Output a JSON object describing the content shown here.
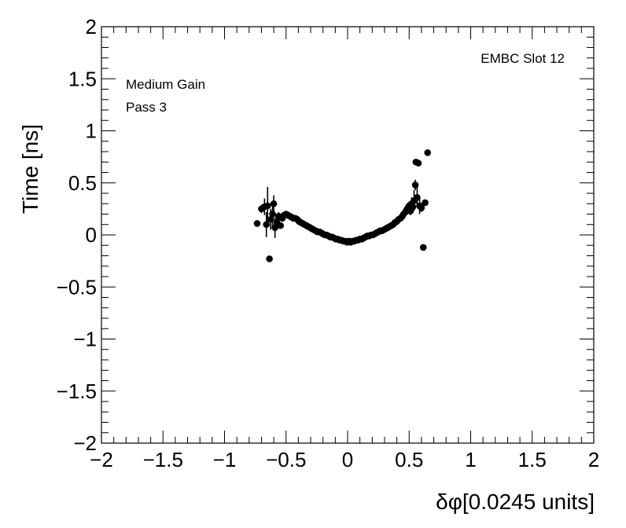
{
  "chart_data": {
    "type": "scatter",
    "title": "",
    "xlabel": "δφ[0.0245 units]",
    "ylabel": "Time [ns]",
    "xlim": [
      -2,
      2
    ],
    "ylim": [
      -2,
      2
    ],
    "x_ticks": [
      -2,
      -1.5,
      -1,
      -0.5,
      0,
      0.5,
      1,
      1.5,
      2
    ],
    "y_ticks": [
      -2,
      -1.5,
      -1,
      -0.5,
      0,
      0.5,
      1,
      1.5,
      2
    ],
    "x_tick_labels": [
      "−2",
      "−1.5",
      "−1",
      "−0.5",
      "0",
      "0.5",
      "1",
      "1.5",
      "2"
    ],
    "y_tick_labels": [
      "−2",
      "−1.5",
      "−1",
      "−0.5",
      "0",
      "0.5",
      "1",
      "1.5",
      "2"
    ],
    "grid": false,
    "annotations": {
      "slot": "EMBC Slot 12",
      "gain": "Medium Gain",
      "pass": "Pass 3"
    },
    "points": [
      {
        "x": -0.735,
        "y": 0.11,
        "err": 0.02
      },
      {
        "x": -0.7,
        "y": 0.25,
        "err": 0.04
      },
      {
        "x": -0.675,
        "y": 0.27,
        "err": 0.08
      },
      {
        "x": -0.66,
        "y": 0.1,
        "err": 0.12
      },
      {
        "x": -0.65,
        "y": 0.28,
        "err": 0.18
      },
      {
        "x": -0.635,
        "y": -0.23,
        "err": 0.02
      },
      {
        "x": -0.625,
        "y": 0.15,
        "err": 0.1
      },
      {
        "x": -0.61,
        "y": 0.2,
        "err": 0.12
      },
      {
        "x": -0.6,
        "y": 0.3,
        "err": 0.08
      },
      {
        "x": -0.59,
        "y": 0.07,
        "err": 0.1
      },
      {
        "x": -0.575,
        "y": 0.12,
        "err": 0.06
      },
      {
        "x": -0.56,
        "y": 0.18,
        "err": 0.04
      },
      {
        "x": -0.545,
        "y": 0.09,
        "err": 0.03
      },
      {
        "x": -0.53,
        "y": 0.16,
        "err": 0.02
      },
      {
        "x": -0.515,
        "y": 0.19,
        "err": 0.02
      },
      {
        "x": -0.5,
        "y": 0.2,
        "err": 0.02
      },
      {
        "x": -0.485,
        "y": 0.19,
        "err": 0.02
      },
      {
        "x": -0.47,
        "y": 0.18,
        "err": 0.02
      },
      {
        "x": -0.455,
        "y": 0.17,
        "err": 0.02
      },
      {
        "x": -0.44,
        "y": 0.16,
        "err": 0.02
      },
      {
        "x": -0.425,
        "y": 0.16,
        "err": 0.02
      },
      {
        "x": -0.41,
        "y": 0.15,
        "err": 0.02
      },
      {
        "x": -0.395,
        "y": 0.13,
        "err": 0.02
      },
      {
        "x": -0.38,
        "y": 0.12,
        "err": 0.02
      },
      {
        "x": -0.365,
        "y": 0.11,
        "err": 0.02
      },
      {
        "x": -0.35,
        "y": 0.1,
        "err": 0.02
      },
      {
        "x": -0.335,
        "y": 0.09,
        "err": 0.02
      },
      {
        "x": -0.32,
        "y": 0.08,
        "err": 0.02
      },
      {
        "x": -0.305,
        "y": 0.07,
        "err": 0.02
      },
      {
        "x": -0.29,
        "y": 0.06,
        "err": 0.02
      },
      {
        "x": -0.275,
        "y": 0.05,
        "err": 0.02
      },
      {
        "x": -0.26,
        "y": 0.04,
        "err": 0.02
      },
      {
        "x": -0.245,
        "y": 0.03,
        "err": 0.02
      },
      {
        "x": -0.23,
        "y": 0.03,
        "err": 0.02
      },
      {
        "x": -0.215,
        "y": 0.02,
        "err": 0.02
      },
      {
        "x": -0.2,
        "y": 0.01,
        "err": 0.02
      },
      {
        "x": -0.185,
        "y": 0.0,
        "err": 0.02
      },
      {
        "x": -0.17,
        "y": 0.0,
        "err": 0.02
      },
      {
        "x": -0.155,
        "y": -0.01,
        "err": 0.02
      },
      {
        "x": -0.14,
        "y": -0.02,
        "err": 0.02
      },
      {
        "x": -0.125,
        "y": -0.02,
        "err": 0.02
      },
      {
        "x": -0.11,
        "y": -0.03,
        "err": 0.02
      },
      {
        "x": -0.095,
        "y": -0.04,
        "err": 0.02
      },
      {
        "x": -0.08,
        "y": -0.04,
        "err": 0.02
      },
      {
        "x": -0.065,
        "y": -0.05,
        "err": 0.02
      },
      {
        "x": -0.05,
        "y": -0.05,
        "err": 0.02
      },
      {
        "x": -0.035,
        "y": -0.06,
        "err": 0.02
      },
      {
        "x": -0.02,
        "y": -0.06,
        "err": 0.02
      },
      {
        "x": -0.005,
        "y": -0.07,
        "err": 0.02
      },
      {
        "x": 0.01,
        "y": -0.06,
        "err": 0.02
      },
      {
        "x": 0.025,
        "y": -0.07,
        "err": 0.02
      },
      {
        "x": 0.04,
        "y": -0.06,
        "err": 0.02
      },
      {
        "x": 0.055,
        "y": -0.06,
        "err": 0.02
      },
      {
        "x": 0.07,
        "y": -0.05,
        "err": 0.02
      },
      {
        "x": 0.085,
        "y": -0.05,
        "err": 0.02
      },
      {
        "x": 0.1,
        "y": -0.04,
        "err": 0.02
      },
      {
        "x": 0.115,
        "y": -0.04,
        "err": 0.02
      },
      {
        "x": 0.13,
        "y": -0.03,
        "err": 0.02
      },
      {
        "x": 0.145,
        "y": -0.02,
        "err": 0.02
      },
      {
        "x": 0.16,
        "y": -0.01,
        "err": 0.02
      },
      {
        "x": 0.175,
        "y": -0.01,
        "err": 0.02
      },
      {
        "x": 0.19,
        "y": 0.0,
        "err": 0.02
      },
      {
        "x": 0.205,
        "y": 0.0,
        "err": 0.02
      },
      {
        "x": 0.22,
        "y": 0.01,
        "err": 0.02
      },
      {
        "x": 0.235,
        "y": 0.02,
        "err": 0.02
      },
      {
        "x": 0.25,
        "y": 0.03,
        "err": 0.02
      },
      {
        "x": 0.265,
        "y": 0.04,
        "err": 0.02
      },
      {
        "x": 0.28,
        "y": 0.04,
        "err": 0.02
      },
      {
        "x": 0.295,
        "y": 0.05,
        "err": 0.02
      },
      {
        "x": 0.31,
        "y": 0.06,
        "err": 0.02
      },
      {
        "x": 0.325,
        "y": 0.07,
        "err": 0.02
      },
      {
        "x": 0.34,
        "y": 0.08,
        "err": 0.02
      },
      {
        "x": 0.355,
        "y": 0.09,
        "err": 0.02
      },
      {
        "x": 0.37,
        "y": 0.1,
        "err": 0.02
      },
      {
        "x": 0.385,
        "y": 0.12,
        "err": 0.02
      },
      {
        "x": 0.4,
        "y": 0.13,
        "err": 0.02
      },
      {
        "x": 0.415,
        "y": 0.15,
        "err": 0.02
      },
      {
        "x": 0.43,
        "y": 0.16,
        "err": 0.02
      },
      {
        "x": 0.445,
        "y": 0.18,
        "err": 0.02
      },
      {
        "x": 0.455,
        "y": 0.2,
        "err": 0.02
      },
      {
        "x": 0.47,
        "y": 0.22,
        "err": 0.03
      },
      {
        "x": 0.48,
        "y": 0.24,
        "err": 0.03
      },
      {
        "x": 0.49,
        "y": 0.26,
        "err": 0.04
      },
      {
        "x": 0.5,
        "y": 0.28,
        "err": 0.04
      },
      {
        "x": 0.51,
        "y": 0.23,
        "err": 0.04
      },
      {
        "x": 0.52,
        "y": 0.3,
        "err": 0.06
      },
      {
        "x": 0.53,
        "y": 0.27,
        "err": 0.06
      },
      {
        "x": 0.54,
        "y": 0.33,
        "err": 0.1
      },
      {
        "x": 0.55,
        "y": 0.48,
        "err": 0.05
      },
      {
        "x": 0.555,
        "y": 0.7,
        "err": 0.02
      },
      {
        "x": 0.565,
        "y": 0.36,
        "err": 0.1
      },
      {
        "x": 0.575,
        "y": 0.69,
        "err": 0.02
      },
      {
        "x": 0.585,
        "y": 0.28,
        "err": 0.08
      },
      {
        "x": 0.6,
        "y": 0.26,
        "err": 0.04
      },
      {
        "x": 0.615,
        "y": -0.12,
        "err": 0.02
      },
      {
        "x": 0.63,
        "y": 0.31,
        "err": 0.03
      },
      {
        "x": 0.65,
        "y": 0.79,
        "err": 0.02
      }
    ]
  }
}
